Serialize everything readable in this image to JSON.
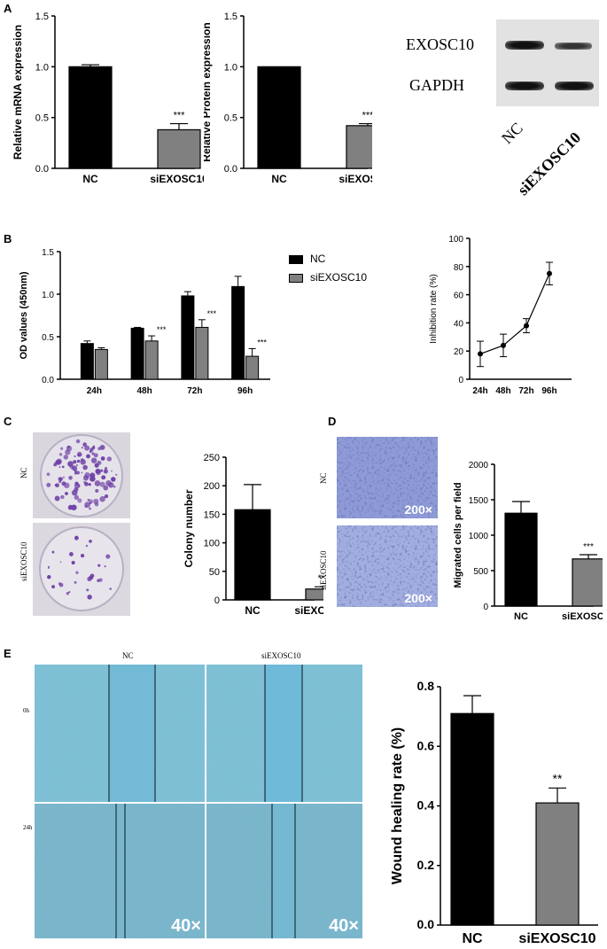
{
  "panels": {
    "a": "A",
    "b": "B",
    "c": "C",
    "d": "D",
    "e": "E"
  },
  "colors": {
    "nc": "#000000",
    "si": "#808080",
    "cristal": "#7a4bb0",
    "transwell": "#3a4aa8",
    "wound": "#6fb4cc"
  },
  "western": {
    "bands": [
      "EXOSC10",
      "GAPDH"
    ],
    "lanes": [
      "NC",
      "siEXOSC10"
    ],
    "band_intensity": [
      [
        1.0,
        0.55
      ],
      [
        1.0,
        1.0
      ]
    ]
  },
  "colony_labels": [
    "NC",
    "siEXOSC10"
  ],
  "transwell_labels": [
    "NC",
    "siEXOSC10"
  ],
  "transwell_mag": "200×",
  "wound": {
    "columns": [
      "NC",
      "siEXOSC10"
    ],
    "rows": [
      "0h",
      "24h"
    ],
    "mag": "40×"
  },
  "chart_data": [
    {
      "id": "mrna",
      "type": "bar",
      "categories": [
        "NC",
        "siEXOSC10"
      ],
      "values": [
        1.0,
        0.38
      ],
      "errors": [
        0.02,
        0.06
      ],
      "sig": [
        "",
        "***"
      ],
      "ylabel": "Relative mRNA expression",
      "ylim": [
        0,
        1.5
      ],
      "yticks": [
        "0.0",
        "0.5",
        "1.0",
        "1.5"
      ]
    },
    {
      "id": "protein",
      "type": "bar",
      "categories": [
        "NC",
        "siEXOSC10"
      ],
      "values": [
        1.0,
        0.42
      ],
      "errors": [
        0.0,
        0.02
      ],
      "sig": [
        "",
        "***"
      ],
      "ylabel": "Relative Protein expression",
      "ylim": [
        0,
        1.5
      ],
      "yticks": [
        "0.0",
        "0.5",
        "1.0",
        "1.5"
      ]
    },
    {
      "id": "od",
      "type": "bar",
      "categories": [
        "24h",
        "48h",
        "72h",
        "96h"
      ],
      "series": [
        {
          "name": "NC",
          "values": [
            0.42,
            0.6,
            0.98,
            1.09
          ],
          "errors": [
            0.03,
            0.01,
            0.05,
            0.12
          ]
        },
        {
          "name": "siEXOSC10",
          "values": [
            0.35,
            0.45,
            0.61,
            0.27
          ],
          "errors": [
            0.02,
            0.06,
            0.09,
            0.09
          ]
        }
      ],
      "sig": [
        "",
        "***",
        "***",
        "***"
      ],
      "ylabel": "OD values (450nm)",
      "ylim": [
        0,
        1.5
      ],
      "yticks": [
        "0.0",
        "0.5",
        "1.0",
        "1.5"
      ],
      "legend": "top-right"
    },
    {
      "id": "inhibition",
      "type": "line",
      "categories": [
        "24h",
        "48h",
        "72h",
        "96h"
      ],
      "values": [
        18,
        24,
        38,
        75
      ],
      "errors": [
        9,
        8,
        5,
        8
      ],
      "ylabel": "Inhibition rate (%)",
      "ylim": [
        0,
        100
      ],
      "yticks": [
        "0",
        "20",
        "40",
        "60",
        "80",
        "100"
      ]
    },
    {
      "id": "colony",
      "type": "bar",
      "categories": [
        "NC",
        "siEXOSC10"
      ],
      "values": [
        158,
        19
      ],
      "errors": [
        44,
        4
      ],
      "sig": [
        "",
        "***"
      ],
      "ylabel": "Colony number",
      "ylim": [
        0,
        250
      ],
      "yticks": [
        "0",
        "50",
        "100",
        "150",
        "200",
        "250"
      ]
    },
    {
      "id": "migrated",
      "type": "bar",
      "categories": [
        "NC",
        "siEXOSC10"
      ],
      "values": [
        1310,
        665
      ],
      "errors": [
        165,
        60
      ],
      "sig": [
        "",
        "***"
      ],
      "ylabel": "Migrated cells per field",
      "ylim": [
        0,
        2000
      ],
      "yticks": [
        "0",
        "500",
        "1000",
        "1500",
        "2000"
      ]
    },
    {
      "id": "wound",
      "type": "bar",
      "categories": [
        "NC",
        "siEXOSC10"
      ],
      "values": [
        0.71,
        0.41
      ],
      "errors": [
        0.06,
        0.05
      ],
      "sig": [
        "",
        "**"
      ],
      "ylabel": "Wound healing rate (%)",
      "ylim": [
        0,
        0.8
      ],
      "yticks": [
        "0.0",
        "0.2",
        "0.4",
        "0.6",
        "0.8"
      ]
    }
  ]
}
